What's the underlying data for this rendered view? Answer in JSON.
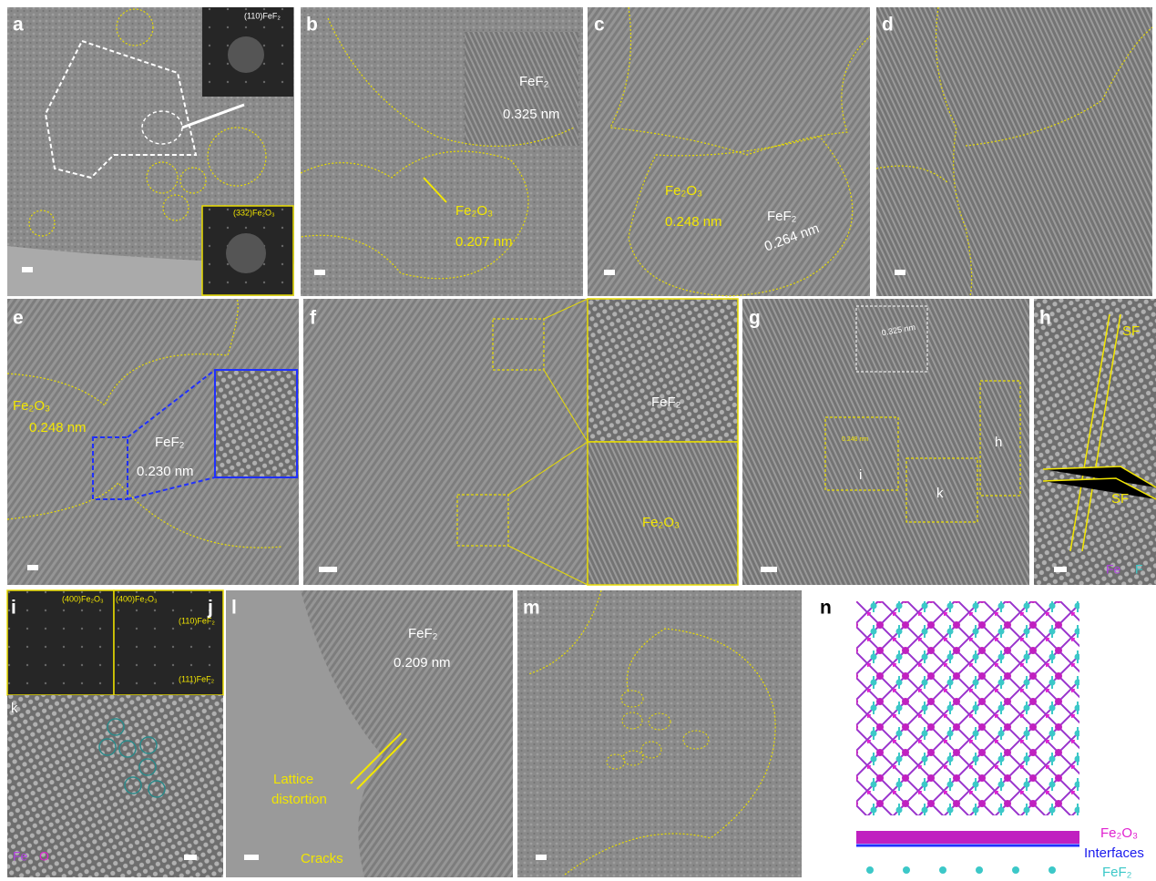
{
  "panels": {
    "a": [
      "a",
      "(110)FeF₂",
      "(332)Fe₂O₃"
    ],
    "b": [
      "b",
      "FeF₂",
      "0.325 nm",
      "Fe₂O₃",
      "0.207 nm"
    ],
    "c": [
      "c",
      "Fe₂O₃",
      "0.248 nm",
      "FeF₂",
      "0.264 nm"
    ],
    "d": [
      "d"
    ],
    "e": [
      "e",
      "Fe₂O₃",
      "0.248 nm",
      "FeF₂",
      "0.230 nm"
    ],
    "f": [
      "f",
      "FeF₂",
      "Fe₂O₃"
    ],
    "g": [
      "g",
      "0.325 nm",
      "0.248 nm",
      "i",
      "k",
      "h"
    ],
    "h": [
      "h",
      "SF",
      "SF",
      "Fe",
      "F"
    ],
    "i": [
      "i",
      "j",
      "(400)Fe₂O₃",
      "(400)Fe₂O₃",
      "(110)FeF₂",
      "(111)FeF₂",
      "k",
      "Fe",
      "O"
    ],
    "l": [
      "l",
      "FeF₂",
      "0.209 nm",
      "Lattice",
      "distortion",
      "Cracks"
    ],
    "m": [
      "m"
    ],
    "n": [
      "n",
      "Fe₂O₃",
      "Interfaces",
      "FeF₂"
    ]
  }
}
